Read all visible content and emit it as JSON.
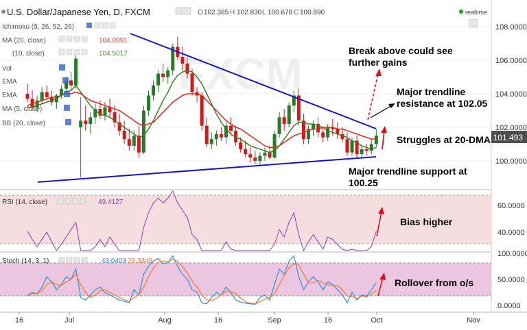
{
  "header": {
    "symbol_title": "U.S. Dollar/Japanese Yen, D, FXCM",
    "o_label": "O",
    "o_value": "102.385",
    "h_label": "H",
    "h_value": "102.830",
    "l_label": "L",
    "l_value": "100.678",
    "c_label": "C",
    "c_value": "100.890",
    "realtime_label": "realtime"
  },
  "indicators": {
    "ichimoku": "Ichimoku (9, 26, 52, 26)",
    "ma20": "MA (20, close)",
    "ma20_value": "104.0991",
    "ma10": "(10, close)",
    "ma10_value": "104.5017",
    "vo": "Vol",
    "ema1": "EMA",
    "ema2": "EMA",
    "ma5": "MA (5, close)",
    "bb": "BB (20, close)"
  },
  "price_axis": {
    "ticks": [
      "108.0000",
      "106.0000",
      "104.0000",
      "102.0000",
      "100.0000"
    ],
    "current_price": "101.493"
  },
  "annotations": {
    "break_above": "Break above could see further gains",
    "major_resistance": "Major trendline resistance at 102.05",
    "struggles": "Struggles at 20-DMA",
    "major_support": "Major trendline support at 100.25",
    "bias": "Bias higher",
    "rollover": "Rollover from o/s"
  },
  "rsi_panel": {
    "label": "RSI (14, close)",
    "value": "49.4127",
    "ticks": [
      "60.0000",
      "40.0000"
    ]
  },
  "stoch_panel": {
    "label": "Stoch (14, 3, 1)",
    "k_value": "43.0403",
    "d_value": "29.3349",
    "ticks": [
      "100.0000",
      "50.0000",
      "0.0000"
    ]
  },
  "time_axis": {
    "labels": [
      "16",
      "Jul",
      "Aug",
      "16",
      "Sep",
      "16",
      "Oct",
      "Nov"
    ]
  },
  "colors": {
    "candle_up": "#2a7a2a",
    "candle_down": "#d11a1a",
    "ma20": "#e8221b",
    "ma10": "#3c7d22",
    "trendline": "#1515c8",
    "rsi": "#8a3ab9",
    "stoch_k": "#2f8fd8",
    "stoch_d": "#f07a2a",
    "panel_bg": "#f6dede",
    "stoch_band": "#ecc6e0",
    "arrow": "#e0101a"
  },
  "chart_data": [
    {
      "type": "candlestick",
      "title": "U.S. Dollar/Japanese Yen, D, FXCM",
      "ylim": [
        98.5,
        109
      ],
      "ohlc": [
        [
          104.0,
          104.6,
          103.5,
          103.7
        ],
        [
          103.7,
          104.2,
          103.0,
          103.2
        ],
        [
          103.2,
          103.9,
          102.9,
          103.6
        ],
        [
          103.6,
          104.4,
          103.4,
          104.1
        ],
        [
          104.1,
          104.5,
          103.6,
          103.8
        ],
        [
          103.8,
          104.2,
          103.3,
          103.5
        ],
        [
          103.5,
          104.0,
          103.1,
          103.9
        ],
        [
          103.9,
          104.5,
          103.7,
          104.3
        ],
        [
          104.3,
          105.0,
          104.0,
          104.8
        ],
        [
          104.8,
          105.3,
          104.2,
          104.5
        ],
        [
          104.5,
          106.3,
          104.3,
          106.1
        ],
        [
          102.0,
          103.8,
          99.0,
          102.4
        ],
        [
          102.4,
          103.3,
          101.8,
          102.2
        ],
        [
          102.2,
          102.9,
          101.6,
          102.6
        ],
        [
          102.6,
          103.4,
          102.2,
          103.1
        ],
        [
          103.1,
          103.6,
          102.5,
          102.7
        ],
        [
          102.7,
          103.5,
          102.4,
          103.2
        ],
        [
          103.2,
          103.7,
          102.6,
          102.9
        ],
        [
          102.9,
          103.3,
          102.0,
          102.3
        ],
        [
          102.3,
          102.8,
          101.5,
          101.8
        ],
        [
          101.8,
          102.4,
          101.0,
          101.3
        ],
        [
          101.3,
          101.9,
          100.6,
          100.9
        ],
        [
          100.9,
          101.8,
          100.6,
          101.5
        ],
        [
          101.5,
          102.1,
          100.2,
          100.5
        ],
        [
          100.5,
          103.3,
          100.4,
          103.0
        ],
        [
          103.0,
          104.2,
          102.7,
          103.9
        ],
        [
          103.9,
          104.8,
          103.6,
          104.5
        ],
        [
          104.5,
          105.4,
          104.1,
          105.2
        ],
        [
          105.2,
          105.8,
          104.7,
          105.0
        ],
        [
          105.0,
          105.6,
          104.6,
          105.4
        ],
        [
          105.4,
          107.0,
          105.1,
          106.8
        ],
        [
          106.8,
          107.4,
          106.0,
          106.2
        ],
        [
          106.2,
          106.8,
          105.4,
          105.8
        ],
        [
          105.8,
          106.2,
          104.9,
          105.2
        ],
        [
          105.2,
          105.5,
          103.9,
          104.1
        ],
        [
          104.1,
          104.4,
          103.5,
          103.9
        ],
        [
          103.9,
          104.1,
          101.8,
          102.1
        ],
        [
          102.1,
          102.6,
          100.8,
          101.0
        ],
        [
          101.0,
          101.7,
          100.7,
          101.3
        ],
        [
          101.3,
          101.8,
          100.9,
          101.6
        ],
        [
          101.6,
          102.0,
          101.2,
          101.4
        ],
        [
          101.4,
          102.3,
          101.0,
          102.1
        ],
        [
          102.1,
          102.6,
          101.5,
          101.8
        ],
        [
          101.8,
          102.1,
          100.9,
          101.1
        ],
        [
          101.1,
          101.4,
          100.5,
          100.7
        ],
        [
          100.7,
          101.2,
          100.2,
          100.4
        ],
        [
          100.4,
          100.8,
          99.9,
          100.2
        ],
        [
          100.2,
          100.6,
          99.8,
          100.0
        ],
        [
          100.0,
          100.5,
          99.7,
          100.3
        ],
        [
          100.3,
          100.8,
          100.0,
          100.5
        ],
        [
          100.5,
          100.9,
          100.1,
          100.2
        ],
        [
          100.2,
          101.8,
          100.1,
          101.6
        ],
        [
          101.6,
          102.9,
          101.4,
          102.6
        ],
        [
          102.6,
          103.1,
          101.8,
          102.2
        ],
        [
          102.2,
          103.5,
          102.0,
          103.3
        ],
        [
          103.3,
          104.2,
          102.9,
          103.9
        ],
        [
          103.9,
          104.3,
          102.1,
          102.4
        ],
        [
          102.4,
          102.8,
          101.0,
          101.3
        ],
        [
          101.3,
          102.1,
          101.0,
          101.9
        ],
        [
          101.9,
          102.4,
          101.5,
          102.2
        ],
        [
          102.2,
          102.6,
          101.4,
          101.7
        ],
        [
          101.7,
          102.0,
          101.1,
          101.4
        ],
        [
          101.4,
          102.2,
          101.2,
          102.0
        ],
        [
          102.0,
          102.5,
          101.5,
          101.9
        ],
        [
          101.9,
          102.3,
          101.3,
          101.6
        ],
        [
          101.6,
          102.0,
          101.1,
          101.3
        ],
        [
          101.3,
          101.7,
          100.3,
          100.5
        ],
        [
          100.5,
          101.4,
          100.3,
          101.2
        ],
        [
          101.2,
          101.5,
          100.2,
          100.4
        ],
        [
          100.4,
          100.9,
          100.2,
          100.7
        ],
        [
          100.7,
          101.0,
          100.3,
          100.6
        ],
        [
          100.6,
          101.3,
          100.4,
          101.0
        ],
        [
          101.0,
          101.9,
          100.8,
          101.5
        ]
      ]
    },
    {
      "type": "line",
      "series": [
        {
          "name": "MA (20, close)",
          "values": [
            103.3,
            103.4,
            103.5,
            103.6,
            103.7,
            103.8,
            103.8,
            103.9,
            104.0,
            104.0,
            104.1,
            104.0,
            103.8,
            103.6,
            103.5,
            103.4,
            103.3,
            103.2,
            103.1,
            103.0,
            102.8,
            102.6,
            102.4,
            102.2,
            102.1,
            102.2,
            102.3,
            102.6,
            102.9,
            103.2,
            103.5,
            103.7,
            103.9,
            104.0,
            104.0,
            104.0,
            103.9,
            103.6,
            103.3,
            103.0,
            102.7,
            102.4,
            102.2,
            102.0,
            101.9,
            101.7,
            101.5,
            101.3,
            101.1,
            100.9,
            100.8,
            100.8,
            100.9,
            101.1,
            101.3,
            101.5,
            101.6,
            101.7,
            101.8,
            101.9,
            101.9,
            102.0,
            102.0,
            102.0,
            101.9,
            101.9,
            101.8,
            101.7,
            101.6,
            101.5,
            101.4,
            101.3,
            101.3
          ]
        },
        {
          "name": "(10, close)",
          "values": [
            103.2,
            103.2,
            103.3,
            103.4,
            103.5,
            103.6,
            103.7,
            103.9,
            104.1,
            104.2,
            104.5,
            104.1,
            103.7,
            103.3,
            103.0,
            102.8,
            102.7,
            102.6,
            102.4,
            102.2,
            102.0,
            101.8,
            101.6,
            101.4,
            101.5,
            101.9,
            102.4,
            103.0,
            103.6,
            104.1,
            104.7,
            105.1,
            105.3,
            105.4,
            105.3,
            105.0,
            104.6,
            104.0,
            103.4,
            102.8,
            102.3,
            101.9,
            101.6,
            101.4,
            101.3,
            101.1,
            100.9,
            100.8,
            100.7,
            100.6,
            100.5,
            100.6,
            100.9,
            101.3,
            101.7,
            102.1,
            102.3,
            102.3,
            102.2,
            102.2,
            102.1,
            102.0,
            101.8,
            101.7,
            101.6,
            101.5,
            101.4,
            101.2,
            101.1,
            100.9,
            100.8,
            100.7,
            100.8
          ]
        }
      ]
    },
    {
      "type": "line",
      "title": "RSI (14, close)",
      "ylim": [
        30,
        70
      ],
      "series": [
        {
          "name": "RSI",
          "values": [
            49.4,
            46,
            43,
            46,
            49,
            45,
            41,
            44,
            47,
            50,
            53,
            36,
            40,
            39,
            43,
            46,
            43,
            47,
            44,
            40,
            37,
            35,
            38,
            35,
            51,
            57,
            61,
            63,
            61,
            63,
            66,
            61,
            58,
            55,
            48,
            46,
            39,
            34,
            37,
            40,
            39,
            45,
            42,
            37,
            35,
            33,
            32,
            31,
            35,
            38,
            36,
            44,
            50,
            47,
            53,
            57,
            48,
            41,
            45,
            48,
            45,
            42,
            47,
            46,
            44,
            42,
            36,
            42,
            37,
            40,
            39,
            43,
            49.4
          ]
        }
      ]
    },
    {
      "type": "line",
      "title": "Stoch (14, 3, 1)",
      "ylim": [
        0,
        100
      ],
      "series": [
        {
          "name": "K",
          "values": [
            20,
            25,
            22,
            35,
            55,
            45,
            30,
            40,
            55,
            50,
            70,
            15,
            10,
            20,
            30,
            35,
            25,
            20,
            15,
            10,
            8,
            5,
            30,
            20,
            60,
            75,
            85,
            90,
            80,
            82,
            95,
            75,
            60,
            50,
            30,
            25,
            5,
            3,
            15,
            25,
            20,
            35,
            25,
            10,
            6,
            4,
            3,
            2,
            15,
            20,
            10,
            40,
            70,
            60,
            85,
            95,
            55,
            30,
            45,
            55,
            45,
            30,
            45,
            40,
            30,
            20,
            5,
            25,
            10,
            20,
            18,
            30,
            43
          ]
        },
        {
          "name": "D",
          "values": [
            18,
            22,
            24,
            28,
            40,
            45,
            40,
            38,
            45,
            50,
            60,
            40,
            25,
            15,
            20,
            28,
            30,
            25,
            20,
            15,
            11,
            8,
            15,
            20,
            35,
            55,
            72,
            83,
            85,
            84,
            88,
            84,
            74,
            62,
            47,
            35,
            20,
            11,
            8,
            14,
            20,
            27,
            27,
            23,
            14,
            7,
            4,
            3,
            7,
            12,
            15,
            22,
            40,
            57,
            72,
            80,
            78,
            60,
            43,
            43,
            48,
            43,
            40,
            38,
            38,
            30,
            18,
            17,
            13,
            18,
            16,
            22,
            29
          ]
        }
      ]
    }
  ]
}
